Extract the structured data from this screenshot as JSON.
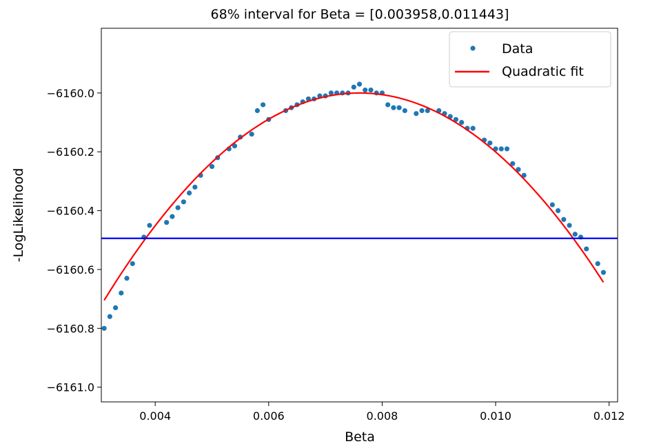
{
  "chart_data": {
    "type": "scatter",
    "title": "68% interval for Beta = [0.003958,0.011443]",
    "xlabel": "Beta",
    "ylabel": "-LogLikelihood",
    "xlim": [
      0.00305,
      0.01215
    ],
    "ylim": [
      -6161.05,
      -6159.78
    ],
    "xticks": [
      0.004,
      0.006,
      0.008,
      0.01,
      0.012
    ],
    "xtick_labels": [
      "0.004",
      "0.006",
      "0.008",
      "0.010",
      "0.012"
    ],
    "yticks": [
      -6160.0,
      -6160.2,
      -6160.4,
      -6160.6,
      -6160.8,
      -6161.0
    ],
    "ytick_labels": [
      "−6160.0",
      "−6160.2",
      "−6160.4",
      "−6160.6",
      "−6160.8",
      "−6161.0"
    ],
    "grid": false,
    "legend_position": "top-right",
    "series": [
      {
        "name": "Data",
        "kind": "points",
        "color": "#1f77b4",
        "x": [
          0.0031,
          0.0032,
          0.0033,
          0.0034,
          0.0035,
          0.0036,
          0.0038,
          0.0039,
          0.0042,
          0.0043,
          0.0044,
          0.0045,
          0.0046,
          0.0047,
          0.0048,
          0.005,
          0.0051,
          0.0053,
          0.0054,
          0.0055,
          0.0057,
          0.0058,
          0.0059,
          0.006,
          0.0063,
          0.0064,
          0.0065,
          0.0066,
          0.0067,
          0.0068,
          0.0069,
          0.007,
          0.0071,
          0.0072,
          0.0073,
          0.0074,
          0.0075,
          0.0076,
          0.0077,
          0.0078,
          0.0079,
          0.008,
          0.0081,
          0.0082,
          0.0083,
          0.0084,
          0.0086,
          0.0087,
          0.0088,
          0.009,
          0.0091,
          0.0092,
          0.0093,
          0.0094,
          0.0095,
          0.0096,
          0.0098,
          0.0099,
          0.01,
          0.0101,
          0.0102,
          0.0103,
          0.0104,
          0.0105,
          0.011,
          0.0111,
          0.0112,
          0.0113,
          0.0114,
          0.0115,
          0.0116,
          0.0118,
          0.0119
        ],
        "y": [
          -6160.8,
          -6160.76,
          -6160.73,
          -6160.68,
          -6160.63,
          -6160.58,
          -6160.49,
          -6160.45,
          -6160.44,
          -6160.42,
          -6160.39,
          -6160.37,
          -6160.34,
          -6160.32,
          -6160.28,
          -6160.25,
          -6160.22,
          -6160.19,
          -6160.18,
          -6160.15,
          -6160.14,
          -6160.06,
          -6160.04,
          -6160.09,
          -6160.06,
          -6160.05,
          -6160.04,
          -6160.03,
          -6160.02,
          -6160.02,
          -6160.01,
          -6160.01,
          -6160.0,
          -6160.0,
          -6160.0,
          -6160.0,
          -6159.98,
          -6159.97,
          -6159.99,
          -6159.99,
          -6160.0,
          -6160.0,
          -6160.04,
          -6160.05,
          -6160.05,
          -6160.06,
          -6160.07,
          -6160.06,
          -6160.06,
          -6160.06,
          -6160.07,
          -6160.08,
          -6160.09,
          -6160.1,
          -6160.12,
          -6160.12,
          -6160.16,
          -6160.17,
          -6160.19,
          -6160.19,
          -6160.19,
          -6160.24,
          -6160.26,
          -6160.28,
          -6160.38,
          -6160.4,
          -6160.43,
          -6160.45,
          -6160.48,
          -6160.49,
          -6160.53,
          -6160.58,
          -6160.61
        ]
      },
      {
        "name": "Quadratic fit",
        "kind": "quadratic",
        "color": "#ff0000",
        "vertex_x": 0.0076,
        "vertex_y": -6160.0,
        "a": -34800,
        "x_range": [
          0.0031,
          0.0119
        ]
      }
    ],
    "hline": {
      "y": -6160.494,
      "color": "#0000ff"
    }
  }
}
